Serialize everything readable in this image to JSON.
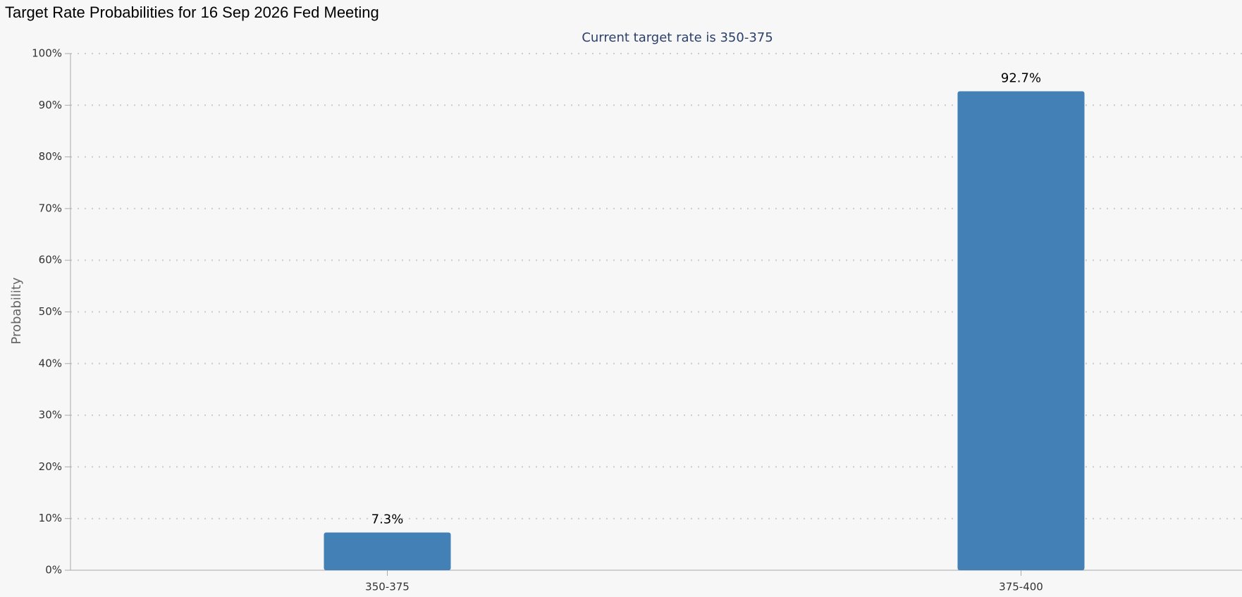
{
  "chart_data": {
    "type": "bar",
    "title": "Target Rate Probabilities for 16 Sep 2026 Fed Meeting",
    "subtitle": "Current target rate is 350-375",
    "y_label": "Probability",
    "categories": [
      "350-375",
      "375-400"
    ],
    "values": [
      7.3,
      92.7
    ],
    "value_labels": [
      "7.3%",
      "92.7%"
    ],
    "color": "#4280b6",
    "ylim": [
      0,
      100
    ],
    "yticks": [
      {
        "value": 0,
        "label": "0%"
      },
      {
        "value": 10,
        "label": "10%"
      },
      {
        "value": 20,
        "label": "20%"
      },
      {
        "value": 30,
        "label": "30%"
      },
      {
        "value": 40,
        "label": "40%"
      },
      {
        "value": 50,
        "label": "50%"
      },
      {
        "value": 60,
        "label": "60%"
      },
      {
        "value": 70,
        "label": "70%"
      },
      {
        "value": 80,
        "label": "80%"
      },
      {
        "value": 90,
        "label": "90%"
      },
      {
        "value": 100,
        "label": "100%"
      }
    ],
    "grid": true
  }
}
